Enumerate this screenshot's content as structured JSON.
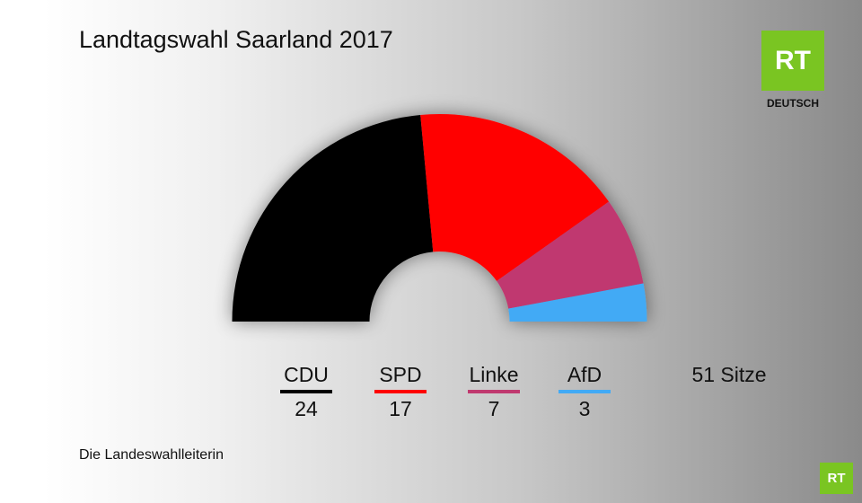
{
  "chart_data": {
    "type": "semicircle",
    "title": "Landtagswahl Saarland 2017",
    "categories": [
      "CDU",
      "SPD",
      "Linke",
      "AfD"
    ],
    "values": [
      24,
      17,
      7,
      3
    ],
    "colors": [
      "#000000",
      "#ff0000",
      "#c0396f",
      "#42aaf5"
    ],
    "total_label": "51 Sitze",
    "source": "Die Landeswahlleiterin",
    "logo": {
      "text": "RT",
      "subtitle": "DEUTSCH"
    }
  }
}
